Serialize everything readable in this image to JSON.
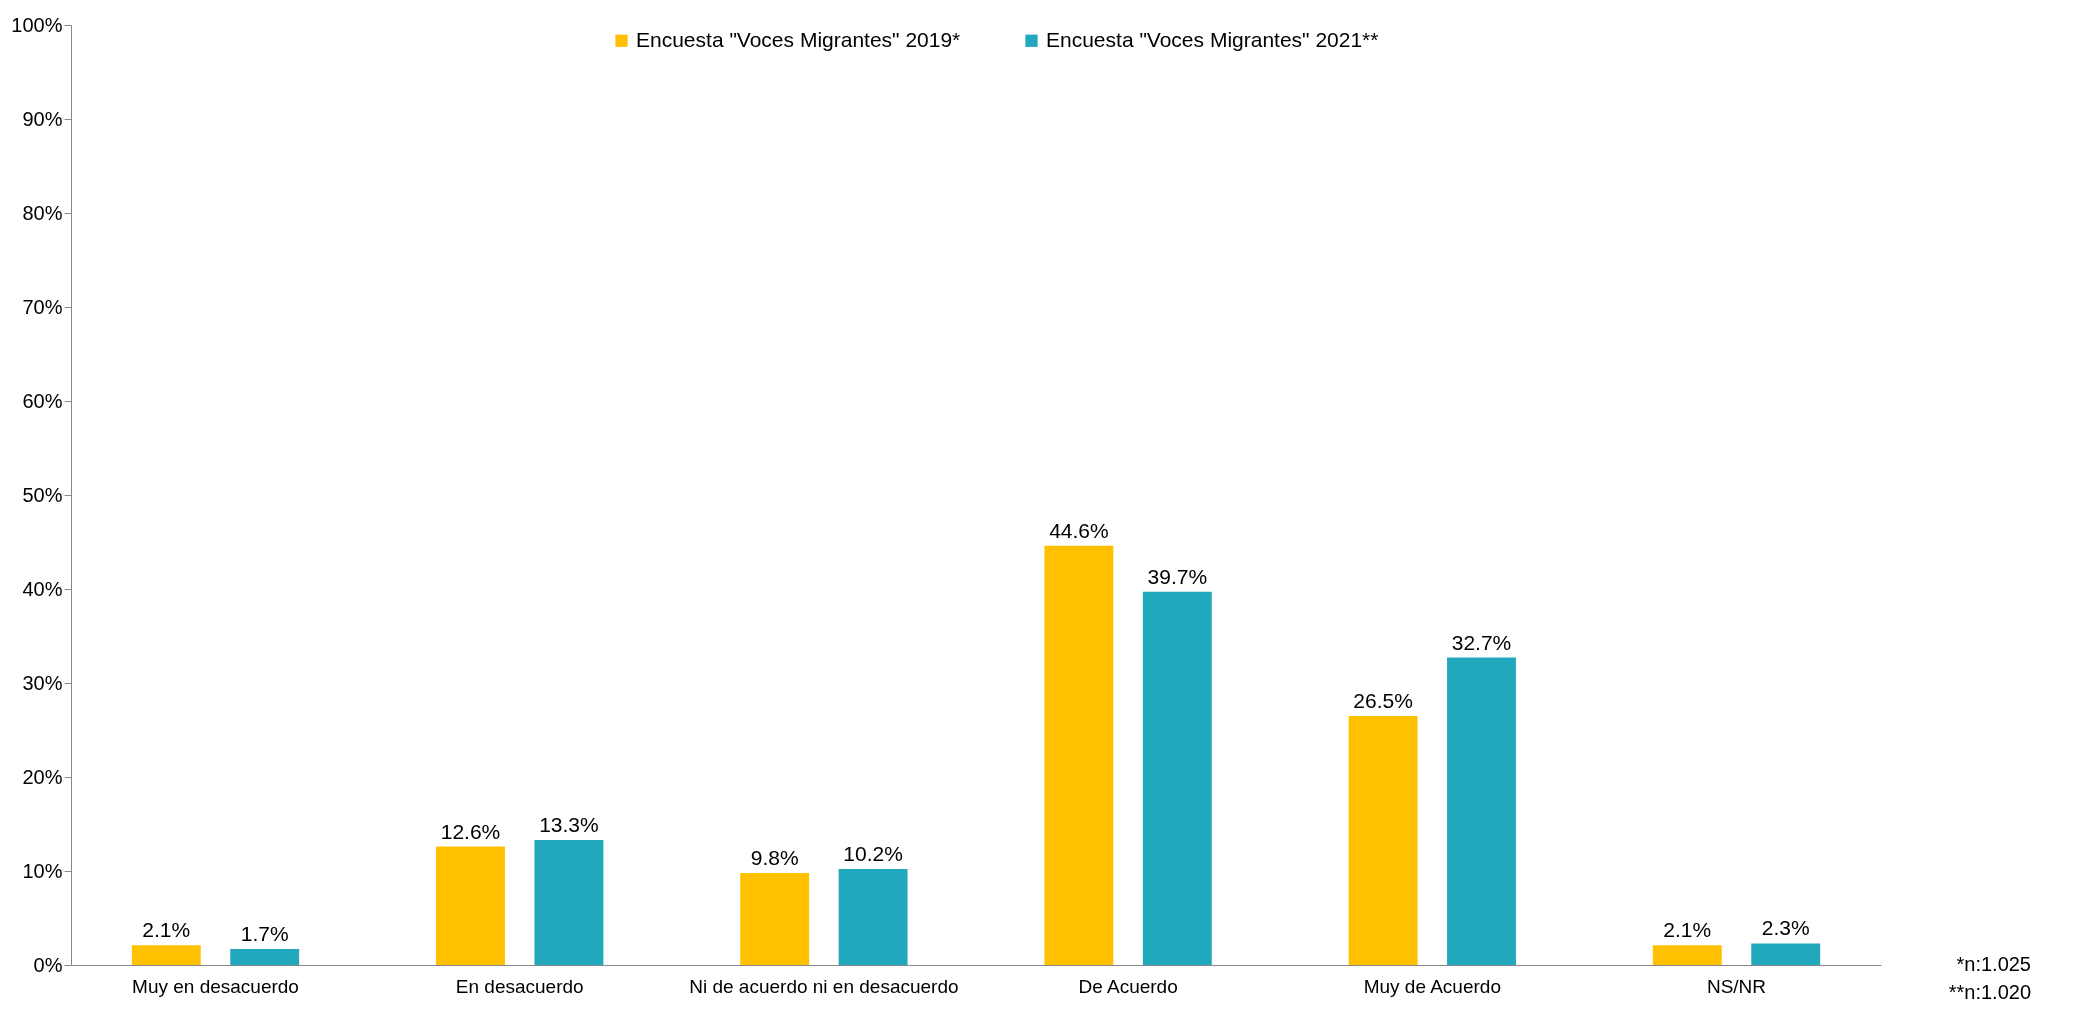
{
  "chart_data": {
    "type": "bar",
    "categories": [
      "Muy en desacuerdo",
      "En desacuerdo",
      "Ni de acuerdo ni en desacuerdo",
      "De Acuerdo",
      "Muy de Acuerdo",
      "NS/NR"
    ],
    "series": [
      {
        "name": "Encuesta \"Voces Migrantes\" 2019*",
        "color": "#ffc000",
        "values": [
          2.1,
          12.6,
          9.8,
          44.6,
          26.5,
          2.1
        ],
        "value_labels": [
          "2.1%",
          "12.6%",
          "9.8%",
          "44.6%",
          "26.5%",
          "2.1%"
        ]
      },
      {
        "name": "Encuesta \"Voces Migrantes\" 2021**",
        "color": "#21a8bc",
        "values": [
          1.7,
          13.3,
          10.2,
          39.7,
          32.7,
          2.3
        ],
        "value_labels": [
          "1.7%",
          "13.3%",
          "10.2%",
          "39.7%",
          "32.7%",
          "2.3%"
        ]
      }
    ],
    "ylim": [
      0,
      100
    ],
    "yticks": [
      {
        "value": 0,
        "label": "0%"
      },
      {
        "value": 10,
        "label": "10%"
      },
      {
        "value": 20,
        "label": "20%"
      },
      {
        "value": 30,
        "label": "30%"
      },
      {
        "value": 40,
        "label": "40%"
      },
      {
        "value": 50,
        "label": "50%"
      },
      {
        "value": 60,
        "label": "60%"
      },
      {
        "value": 70,
        "label": "70%"
      },
      {
        "value": 80,
        "label": "80%"
      },
      {
        "value": 90,
        "label": "90%"
      },
      {
        "value": 100,
        "label": "100%"
      }
    ],
    "grid": false,
    "legend": "top",
    "annotations": [
      "*n:1.025",
      "**n:1.020"
    ]
  }
}
